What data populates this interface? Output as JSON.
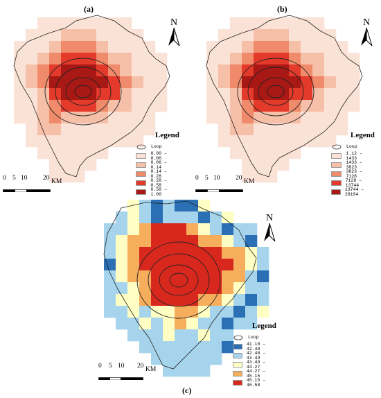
{
  "panels": [
    {
      "id": "a",
      "label": "(a)",
      "legend": {
        "title": "Legend",
        "loop_label": "Loop",
        "classes": [
          {
            "label": "0.00 – 0.06",
            "color": "#fbe2d7"
          },
          {
            "label": "0.06 – 0.14",
            "color": "#f6bfa8"
          },
          {
            "label": "0.14 – 0.28",
            "color": "#ef8b6a"
          },
          {
            "label": "0.28 – 0.58",
            "color": "#e33a2b"
          },
          {
            "label": "0.58 – 1.00",
            "color": "#a81815"
          }
        ]
      }
    },
    {
      "id": "b",
      "label": "(b)",
      "legend": {
        "title": "Legend",
        "loop_label": "Loop",
        "classes": [
          {
            "label": "1.12 – 1433",
            "color": "#fbe2d7"
          },
          {
            "label": "1433 – 3823",
            "color": "#f6bfa8"
          },
          {
            "label": "3823 – 7128",
            "color": "#ef8b6a"
          },
          {
            "label": "7128 – 13744",
            "color": "#e33a2b"
          },
          {
            "label": "13744 – 28194",
            "color": "#a81815"
          }
        ]
      }
    },
    {
      "id": "c",
      "label": "(c)",
      "legend": {
        "title": "Legend",
        "loop_label": "Loop",
        "classes": [
          {
            "label": "41.10 – 42.48",
            "color": "#2b6fb5"
          },
          {
            "label": "42.48 – 43.49",
            "color": "#a6d4ec"
          },
          {
            "label": "43.49 – 44.27",
            "color": "#ffffc4"
          },
          {
            "label": "44.27 – 45.15",
            "color": "#f6ae5c"
          },
          {
            "label": "45.15 – 46.58",
            "color": "#d8281e"
          }
        ]
      }
    }
  ],
  "scale_bar": {
    "ticks": [
      "0",
      "5",
      "10",
      "20"
    ],
    "unit": "KM"
  },
  "north_arrow": {
    "label": "N"
  }
}
